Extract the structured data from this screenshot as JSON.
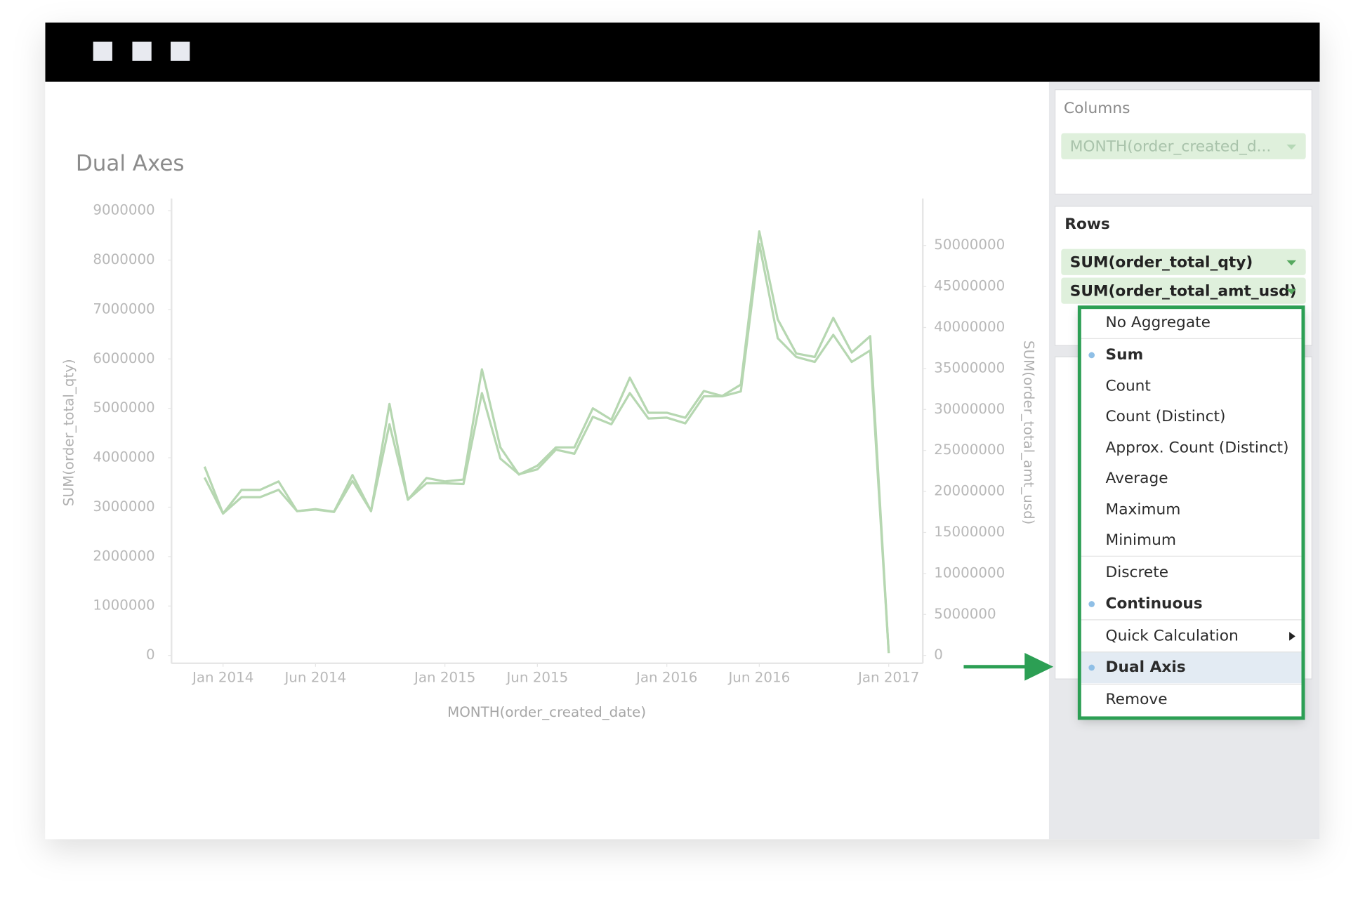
{
  "chart_data": {
    "type": "line",
    "title": "Dual Axes",
    "x_label": "MONTH(order_created_date)",
    "y_label": "SUM(order_total_qty)",
    "y2_label": "SUM(order_total_amt_usd)",
    "x": [
      "2013-12",
      "2014-01",
      "2014-02",
      "2014-03",
      "2014-04",
      "2014-05",
      "2014-06",
      "2014-07",
      "2014-08",
      "2014-09",
      "2014-10",
      "2014-11",
      "2014-12",
      "2015-01",
      "2015-02",
      "2015-03",
      "2015-04",
      "2015-05",
      "2015-06",
      "2015-07",
      "2015-08",
      "2015-09",
      "2015-10",
      "2015-11",
      "2015-12",
      "2016-01",
      "2016-02",
      "2016-03",
      "2016-04",
      "2016-05",
      "2016-06",
      "2016-07",
      "2016-08",
      "2016-09",
      "2016-10",
      "2016-11",
      "2016-12",
      "2017-01"
    ],
    "xticks": [
      {
        "value": "2014-01",
        "label": "Jan 2014"
      },
      {
        "value": "2014-06",
        "label": "Jun 2014"
      },
      {
        "value": "2015-01",
        "label": "Jan 2015"
      },
      {
        "value": "2015-06",
        "label": "Jun 2015"
      },
      {
        "value": "2016-01",
        "label": "Jan 2016"
      },
      {
        "value": "2016-06",
        "label": "Jun 2016"
      },
      {
        "value": "2017-01",
        "label": "Jan 2017"
      }
    ],
    "ylim": [
      0,
      9000000
    ],
    "yticks": [
      0,
      1000000,
      2000000,
      3000000,
      4000000,
      5000000,
      6000000,
      7000000,
      8000000,
      9000000
    ],
    "y2lim": [
      0,
      54250000
    ],
    "y2ticks": [
      0,
      5000000,
      10000000,
      15000000,
      20000000,
      25000000,
      30000000,
      35000000,
      40000000,
      45000000,
      50000000
    ],
    "grid": false,
    "series": [
      {
        "color": "#b6d7b1",
        "values": [
          3820000,
          2870000,
          3350000,
          3350000,
          3520000,
          2920000,
          2960000,
          2910000,
          3650000,
          2920000,
          5090000,
          3150000,
          3590000,
          3520000,
          3560000,
          5790000,
          4210000,
          3660000,
          3840000,
          4210000,
          4210000,
          5000000,
          4770000,
          5620000,
          4910000,
          4910000,
          4810000,
          5350000,
          5250000,
          5480000,
          8580000,
          6800000,
          6110000,
          6040000,
          6830000,
          6130000,
          6460000,
          50000
        ]
      },
      {
        "axis": "y2",
        "color": "#b6d7b1",
        "values": [
          21700000,
          17300000,
          19300000,
          19300000,
          20200000,
          17600000,
          17800000,
          17500000,
          21300000,
          17600000,
          28200000,
          19000000,
          21000000,
          21000000,
          20900000,
          32000000,
          24000000,
          22100000,
          22700000,
          25100000,
          24600000,
          29100000,
          28200000,
          32000000,
          28900000,
          29000000,
          28300000,
          31600000,
          31600000,
          32200000,
          50200000,
          38700000,
          36400000,
          35800000,
          39100000,
          35800000,
          37200000,
          300000
        ]
      }
    ]
  },
  "panel": {
    "columns": {
      "title": "Columns",
      "pills": [
        "MONTH(order_created_d..."
      ]
    },
    "rows": {
      "title": "Rows",
      "pills": [
        "SUM(order_total_qty)",
        "SUM(order_total_amt_usd)"
      ]
    }
  },
  "menu": {
    "items": [
      {
        "label": "No Aggregate"
      },
      {
        "label": "Sum",
        "selected": true
      },
      {
        "label": "Count"
      },
      {
        "label": "Count (Distinct)"
      },
      {
        "label": "Approx. Count (Distinct)"
      },
      {
        "label": "Average"
      },
      {
        "label": "Maximum"
      },
      {
        "label": "Minimum"
      },
      {
        "label": "Discrete"
      },
      {
        "label": "Continuous",
        "selected": true
      },
      {
        "label": "Quick Calculation",
        "submenu": true
      },
      {
        "label": "Dual Axis",
        "selected": true,
        "highlighted": true
      },
      {
        "label": "Remove"
      }
    ]
  }
}
